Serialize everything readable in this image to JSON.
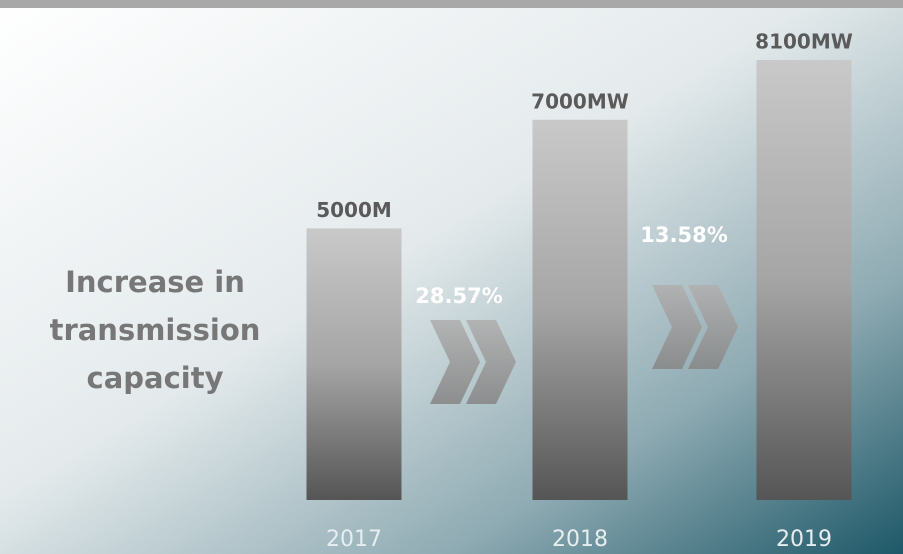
{
  "chart_data": {
    "type": "bar",
    "title": "Increase in transmission capacity",
    "categories": [
      "2017",
      "2018",
      "2019"
    ],
    "values": [
      5000,
      7000,
      8100
    ],
    "value_labels": [
      "5000M",
      "7000MW",
      "8100MW"
    ],
    "annotations": [
      "28.57%",
      "13.58%"
    ]
  }
}
